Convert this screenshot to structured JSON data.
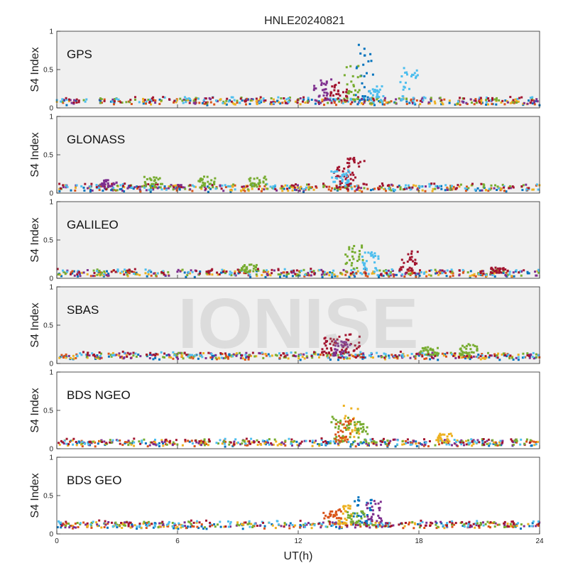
{
  "chart_data": {
    "type": "scatter",
    "title": "HNLE20240821",
    "xlabel": "UT(h)",
    "ylabel": "S4 Index",
    "xlim": [
      0,
      24
    ],
    "ylim": [
      0,
      1
    ],
    "x_ticks": [
      "0",
      "6",
      "12",
      "18",
      "24"
    ],
    "y_ticks": [
      "0",
      "0.5",
      "1"
    ],
    "grid": false,
    "watermark": "IONISE",
    "series_colors": [
      "#0072BD",
      "#D95319",
      "#EDB120",
      "#7E2F8E",
      "#77AC30",
      "#4DBEEE",
      "#A2142F"
    ],
    "panels": [
      {
        "name": "GPS",
        "background": "#f0f0f0",
        "baseline": 0.09,
        "events": [
          {
            "x": 15.3,
            "y": 0.85,
            "color": "#0072BD"
          },
          {
            "x": 14.7,
            "y": 0.55,
            "color": "#77AC30"
          },
          {
            "x": 14.0,
            "y": 0.35,
            "color": "#A2142F"
          },
          {
            "x": 13.2,
            "y": 0.38,
            "color": "#7E2F8E"
          },
          {
            "x": 17.5,
            "y": 0.52,
            "color": "#4DBEEE"
          },
          {
            "x": 15.8,
            "y": 0.3,
            "color": "#4DBEEE"
          }
        ]
      },
      {
        "name": "GLONASS",
        "background": "#f0f0f0",
        "baseline": 0.07,
        "events": [
          {
            "x": 14.9,
            "y": 0.5,
            "color": "#A2142F"
          },
          {
            "x": 14.2,
            "y": 0.35,
            "color": "#A2142F"
          },
          {
            "x": 14.1,
            "y": 0.3,
            "color": "#4DBEEE"
          },
          {
            "x": 10.0,
            "y": 0.22,
            "color": "#77AC30"
          },
          {
            "x": 7.5,
            "y": 0.22,
            "color": "#77AC30"
          },
          {
            "x": 4.8,
            "y": 0.22,
            "color": "#77AC30"
          },
          {
            "x": 2.6,
            "y": 0.17,
            "color": "#7E2F8E"
          }
        ]
      },
      {
        "name": "GALILEO",
        "background": "#f0f0f0",
        "baseline": 0.07,
        "events": [
          {
            "x": 14.8,
            "y": 0.45,
            "color": "#77AC30"
          },
          {
            "x": 15.6,
            "y": 0.35,
            "color": "#4DBEEE"
          },
          {
            "x": 17.5,
            "y": 0.36,
            "color": "#A2142F"
          },
          {
            "x": 9.5,
            "y": 0.18,
            "color": "#77AC30"
          },
          {
            "x": 22.0,
            "y": 0.14,
            "color": "#A2142F"
          }
        ]
      },
      {
        "name": "SBAS",
        "background": "#f0f0f0",
        "baseline": 0.1,
        "events": [
          {
            "x": 13.6,
            "y": 0.35,
            "color": "#A2142F"
          },
          {
            "x": 14.6,
            "y": 0.38,
            "color": "#A2142F"
          },
          {
            "x": 14.2,
            "y": 0.3,
            "color": "#7E2F8E"
          },
          {
            "x": 18.5,
            "y": 0.22,
            "color": "#77AC30"
          },
          {
            "x": 20.5,
            "y": 0.26,
            "color": "#77AC30"
          }
        ]
      },
      {
        "name": "BDS NGEO",
        "background": "#ffffff",
        "baseline": 0.08,
        "events": [
          {
            "x": 14.6,
            "y": 0.58,
            "color": "#EDB120"
          },
          {
            "x": 14.1,
            "y": 0.42,
            "color": "#77AC30"
          },
          {
            "x": 15.0,
            "y": 0.35,
            "color": "#77AC30"
          },
          {
            "x": 14.3,
            "y": 0.4,
            "color": "#D95319"
          },
          {
            "x": 19.2,
            "y": 0.2,
            "color": "#EDB120"
          }
        ]
      },
      {
        "name": "BDS GEO",
        "background": "#ffffff",
        "baseline": 0.12,
        "events": [
          {
            "x": 15.2,
            "y": 0.48,
            "color": "#0072BD"
          },
          {
            "x": 15.8,
            "y": 0.45,
            "color": "#7E2F8E"
          },
          {
            "x": 14.3,
            "y": 0.38,
            "color": "#EDB120"
          },
          {
            "x": 13.7,
            "y": 0.32,
            "color": "#D95319"
          },
          {
            "x": 14.9,
            "y": 0.3,
            "color": "#77AC30"
          }
        ]
      }
    ]
  }
}
